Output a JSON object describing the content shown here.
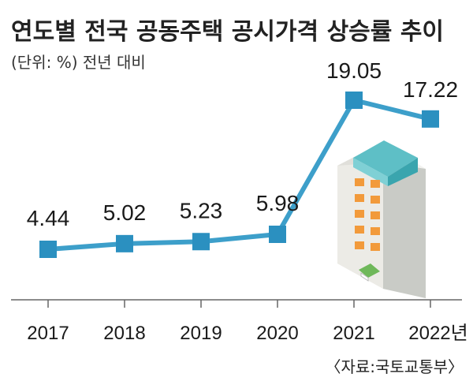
{
  "chart_data": {
    "type": "line",
    "title": "연도별 전국 공동주택 공시가격 상승률 추이",
    "subtitle": "(단위: %) 전년 대비",
    "categories": [
      "2017",
      "2018",
      "2019",
      "2020",
      "2021",
      "2022년"
    ],
    "values": [
      4.44,
      5.02,
      5.23,
      5.98,
      19.05,
      17.22
    ],
    "value_labels": [
      "4.44",
      "5.02",
      "5.23",
      "5.98",
      "19.05",
      "17.22"
    ],
    "xlabel": "",
    "ylabel": "%",
    "grid": false,
    "legend": "none",
    "source": "〈자료:국토교통부〉"
  },
  "colors": {
    "line": "#3d9fca",
    "marker": "#2b90c0",
    "axis": "#666666",
    "background": "#ffffff"
  },
  "icons": [
    "apartment-building-icon"
  ]
}
